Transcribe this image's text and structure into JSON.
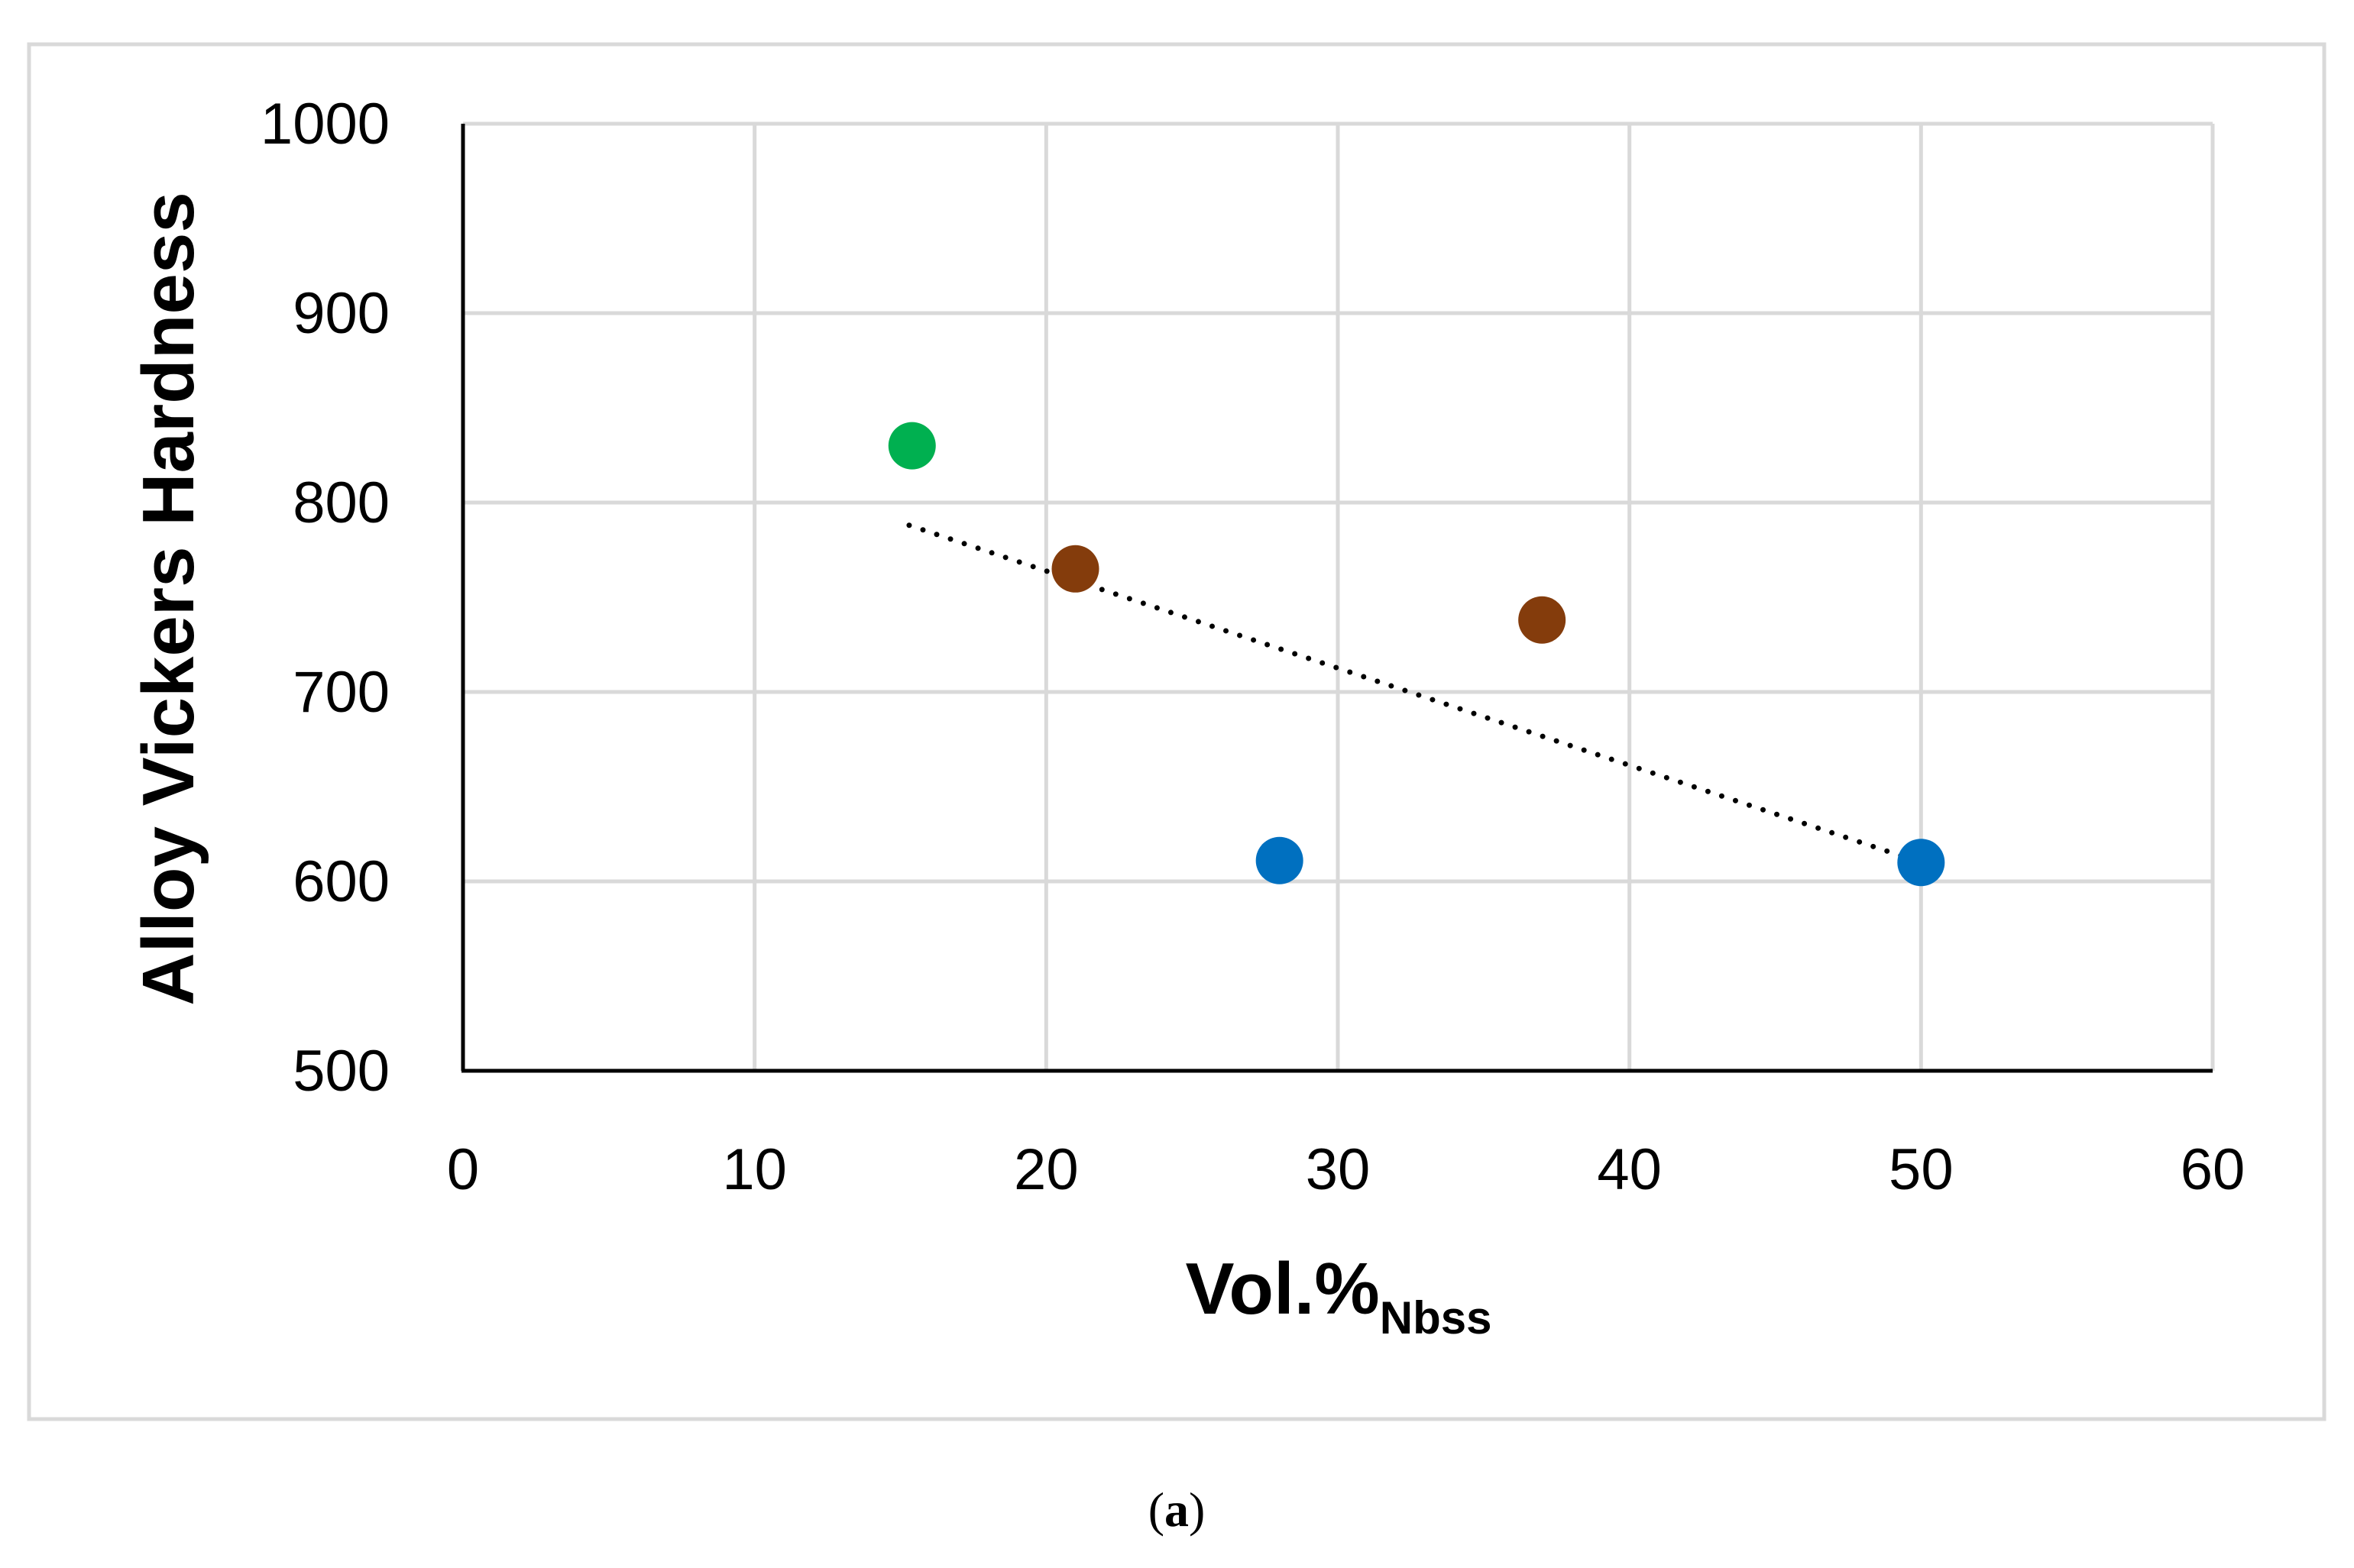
{
  "chart_data": {
    "type": "scatter",
    "title": "",
    "xlabel": "Vol.%",
    "xlabel_subscript": "Nbss",
    "ylabel": "Alloy Vickers Hardness",
    "xlim": [
      0,
      60
    ],
    "ylim": [
      500,
      1000
    ],
    "xticks": [
      0,
      10,
      20,
      30,
      40,
      50,
      60
    ],
    "yticks": [
      500,
      600,
      700,
      800,
      900,
      1000
    ],
    "grid": true,
    "legend": "none",
    "points": [
      {
        "x": 15.4,
        "y": 830,
        "color": "#00b050"
      },
      {
        "x": 21.0,
        "y": 765,
        "color": "#843c0c"
      },
      {
        "x": 37.0,
        "y": 738,
        "color": "#843c0c"
      },
      {
        "x": 28.0,
        "y": 611,
        "color": "#0070c0"
      },
      {
        "x": 50.0,
        "y": 610,
        "color": "#0070c0"
      }
    ],
    "trendline": {
      "style": "dotted",
      "color": "#000000",
      "x_start": 15.3,
      "y_start": 788,
      "x_end": 50.0,
      "y_end": 610
    }
  },
  "caption": {
    "open": "(",
    "label": "a",
    "close": ")"
  },
  "colors": {
    "frame": "#d9d9d9",
    "grid": "#d9d9d9",
    "axis": "#000000"
  }
}
